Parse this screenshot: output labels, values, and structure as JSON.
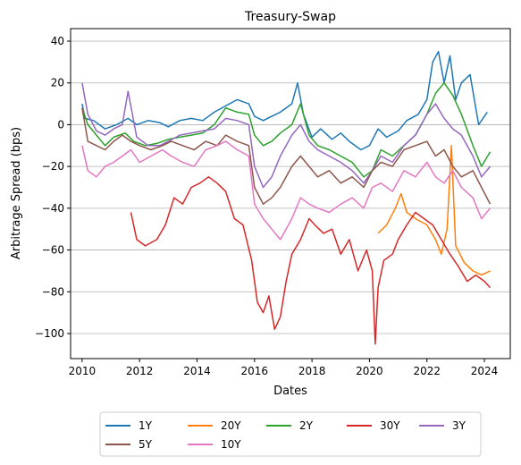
{
  "chart_data": {
    "type": "line",
    "title": "Treasury-Swap",
    "xlabel": "Dates",
    "ylabel": "Arbitrage Spread (bps)",
    "xlim": [
      2009.6,
      2024.9
    ],
    "ylim": [
      -112,
      46
    ],
    "x_ticks": [
      2010,
      2012,
      2014,
      2016,
      2018,
      2020,
      2022,
      2024
    ],
    "x_tick_labels": [
      "2010",
      "2012",
      "2014",
      "2016",
      "2018",
      "2020",
      "2022",
      "2024"
    ],
    "y_ticks": [
      -100,
      -80,
      -60,
      -40,
      -20,
      0,
      20,
      40
    ],
    "y_tick_labels": [
      "−100",
      "−80",
      "−60",
      "−40",
      "−20",
      "0",
      "20",
      "40"
    ],
    "grid": "horizontal",
    "legend": "bottom-center, outside, 5 columns",
    "series": [
      {
        "name": "1Y",
        "color": "#1f77b4",
        "x": [
          2010.0,
          2010.1,
          2010.4,
          2010.8,
          2011.2,
          2011.6,
          2011.9,
          2012.3,
          2012.7,
          2013.0,
          2013.4,
          2013.8,
          2014.2,
          2014.6,
          2015.0,
          2015.4,
          2015.8,
          2016.0,
          2016.3,
          2016.6,
          2016.9,
          2017.3,
          2017.5,
          2017.7,
          2018.0,
          2018.3,
          2018.7,
          2019.0,
          2019.3,
          2019.7,
          2020.0,
          2020.3,
          2020.6,
          2021.0,
          2021.3,
          2021.7,
          2022.0,
          2022.2,
          2022.4,
          2022.6,
          2022.8,
          2023.0,
          2023.2,
          2023.5,
          2023.8,
          2024.1
        ],
        "y": [
          10,
          3,
          2,
          -2,
          0,
          3,
          0,
          2,
          1,
          -1,
          2,
          3,
          2,
          6,
          9,
          12,
          10,
          4,
          2,
          4,
          6,
          10,
          20,
          5,
          -6,
          -2,
          -7,
          -4,
          -8,
          -12,
          -10,
          -2,
          -6,
          -3,
          2,
          5,
          12,
          30,
          35,
          20,
          33,
          12,
          20,
          24,
          0,
          6
        ]
      },
      {
        "name": "20Y",
        "color": "#ff7f0e",
        "x": [
          2020.3,
          2020.6,
          2020.9,
          2021.1,
          2021.3,
          2021.6,
          2022.0,
          2022.3,
          2022.5,
          2022.7,
          2022.85,
          2023.0,
          2023.3,
          2023.6,
          2023.9,
          2024.2
        ],
        "y": [
          -52,
          -48,
          -40,
          -33,
          -42,
          -45,
          -48,
          -55,
          -62,
          -50,
          -10,
          -58,
          -66,
          -70,
          -72,
          -70
        ]
      },
      {
        "name": "2Y",
        "color": "#2ca02c",
        "x": [
          2010.0,
          2010.2,
          2010.5,
          2010.8,
          2011.1,
          2011.5,
          2011.8,
          2012.2,
          2012.6,
          2013.0,
          2013.4,
          2013.8,
          2014.2,
          2014.6,
          2015.0,
          2015.4,
          2015.8,
          2016.0,
          2016.3,
          2016.6,
          2016.9,
          2017.3,
          2017.6,
          2017.9,
          2018.2,
          2018.6,
          2019.0,
          2019.4,
          2019.8,
          2020.1,
          2020.4,
          2020.8,
          2021.2,
          2021.6,
          2022.0,
          2022.3,
          2022.6,
          2022.9,
          2023.2,
          2023.6,
          2023.9,
          2024.2
        ],
        "y": [
          8,
          0,
          -5,
          -10,
          -6,
          -4,
          -8,
          -10,
          -9,
          -7,
          -6,
          -5,
          -4,
          0,
          8,
          6,
          5,
          -5,
          -10,
          -8,
          -4,
          0,
          10,
          -5,
          -10,
          -12,
          -15,
          -18,
          -25,
          -22,
          -12,
          -15,
          -10,
          -5,
          5,
          15,
          20,
          14,
          5,
          -10,
          -20,
          -13
        ]
      },
      {
        "name": "30Y",
        "color": "#d62728",
        "x": [
          2011.7,
          2011.9,
          2012.2,
          2012.6,
          2012.9,
          2013.2,
          2013.5,
          2013.8,
          2014.1,
          2014.4,
          2014.7,
          2015.0,
          2015.3,
          2015.6,
          2015.9,
          2016.1,
          2016.3,
          2016.5,
          2016.7,
          2016.9,
          2017.1,
          2017.3,
          2017.6,
          2017.9,
          2018.1,
          2018.4,
          2018.7,
          2019.0,
          2019.3,
          2019.6,
          2019.9,
          2020.1,
          2020.2,
          2020.3,
          2020.5,
          2020.8,
          2021.0,
          2021.3,
          2021.6,
          2021.9,
          2022.2,
          2022.5,
          2022.8,
          2023.1,
          2023.4,
          2023.7,
          2024.0,
          2024.2
        ],
        "y": [
          -42,
          -55,
          -58,
          -55,
          -48,
          -35,
          -38,
          -30,
          -28,
          -25,
          -28,
          -32,
          -45,
          -48,
          -65,
          -85,
          -90,
          -82,
          -98,
          -92,
          -75,
          -62,
          -55,
          -45,
          -48,
          -52,
          -50,
          -62,
          -55,
          -70,
          -60,
          -70,
          -105,
          -78,
          -65,
          -62,
          -55,
          -48,
          -42,
          -45,
          -48,
          -55,
          -62,
          -68,
          -75,
          -72,
          -75,
          -78
        ]
      },
      {
        "name": "3Y",
        "color": "#9467bd",
        "x": [
          2010.0,
          2010.2,
          2010.5,
          2010.8,
          2011.1,
          2011.4,
          2011.6,
          2011.9,
          2012.3,
          2012.7,
          2013.0,
          2013.4,
          2013.8,
          2014.2,
          2014.6,
          2015.0,
          2015.4,
          2015.8,
          2016.0,
          2016.3,
          2016.6,
          2016.9,
          2017.3,
          2017.6,
          2017.9,
          2018.2,
          2018.6,
          2019.0,
          2019.4,
          2019.8,
          2020.1,
          2020.4,
          2020.8,
          2021.2,
          2021.6,
          2022.0,
          2022.3,
          2022.6,
          2022.9,
          2023.2,
          2023.6,
          2023.9,
          2024.2
        ],
        "y": [
          20,
          5,
          -3,
          -5,
          -2,
          0,
          16,
          -6,
          -10,
          -10,
          -8,
          -5,
          -4,
          -3,
          -2,
          3,
          2,
          0,
          -20,
          -30,
          -25,
          -15,
          -5,
          0,
          -8,
          -12,
          -15,
          -18,
          -22,
          -28,
          -22,
          -15,
          -18,
          -10,
          -5,
          5,
          10,
          3,
          -2,
          -5,
          -15,
          -25,
          -20
        ]
      },
      {
        "name": "5Y",
        "color": "#8c564b",
        "x": [
          2010.0,
          2010.2,
          2010.5,
          2010.8,
          2011.1,
          2011.4,
          2011.7,
          2012.0,
          2012.4,
          2012.8,
          2013.1,
          2013.5,
          2013.9,
          2014.3,
          2014.7,
          2015.0,
          2015.4,
          2015.8,
          2016.0,
          2016.3,
          2016.6,
          2016.9,
          2017.3,
          2017.6,
          2017.9,
          2018.2,
          2018.6,
          2019.0,
          2019.4,
          2019.8,
          2020.1,
          2020.4,
          2020.8,
          2021.2,
          2021.6,
          2022.0,
          2022.3,
          2022.6,
          2022.9,
          2023.2,
          2023.6,
          2023.9,
          2024.2
        ],
        "y": [
          8,
          -8,
          -10,
          -12,
          -8,
          -5,
          -8,
          -10,
          -12,
          -10,
          -8,
          -10,
          -12,
          -8,
          -10,
          -5,
          -8,
          -10,
          -30,
          -38,
          -35,
          -30,
          -20,
          -15,
          -20,
          -25,
          -22,
          -28,
          -25,
          -30,
          -22,
          -18,
          -20,
          -12,
          -10,
          -8,
          -15,
          -12,
          -20,
          -25,
          -22,
          -30,
          -38
        ]
      },
      {
        "name": "10Y",
        "color": "#e377c2",
        "x": [
          2010.0,
          2010.2,
          2010.5,
          2010.8,
          2011.1,
          2011.4,
          2011.7,
          2012.0,
          2012.4,
          2012.8,
          2013.1,
          2013.5,
          2013.9,
          2014.3,
          2014.7,
          2015.0,
          2015.4,
          2015.8,
          2016.0,
          2016.3,
          2016.6,
          2016.9,
          2017.3,
          2017.6,
          2017.9,
          2018.2,
          2018.6,
          2019.0,
          2019.4,
          2019.8,
          2020.1,
          2020.4,
          2020.8,
          2021.2,
          2021.6,
          2022.0,
          2022.3,
          2022.6,
          2022.9,
          2023.2,
          2023.6,
          2023.9,
          2024.2
        ],
        "y": [
          -10,
          -22,
          -25,
          -20,
          -18,
          -15,
          -12,
          -18,
          -15,
          -12,
          -15,
          -18,
          -20,
          -12,
          -10,
          -8,
          -12,
          -15,
          -38,
          -45,
          -50,
          -55,
          -45,
          -35,
          -38,
          -40,
          -42,
          -38,
          -35,
          -40,
          -30,
          -28,
          -32,
          -22,
          -25,
          -18,
          -25,
          -28,
          -22,
          -30,
          -35,
          -45,
          -40
        ]
      }
    ]
  }
}
